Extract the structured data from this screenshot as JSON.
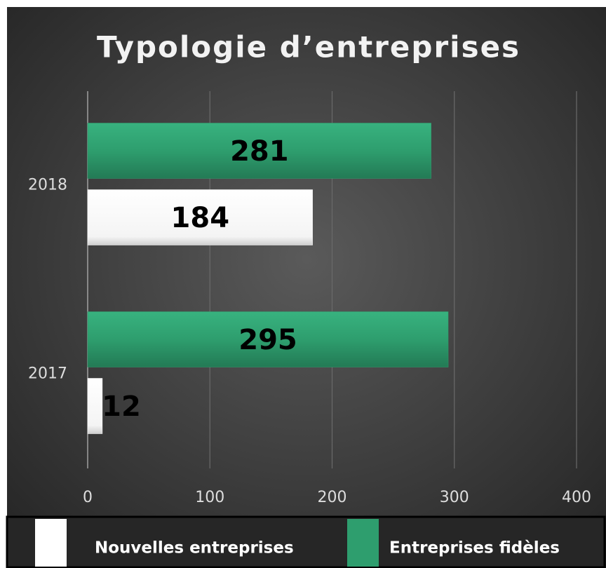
{
  "chart_data": {
    "type": "barh",
    "title": "Typologie d’entreprises",
    "categories": [
      "2017",
      "2018"
    ],
    "series": [
      {
        "name": "Nouvelles entreprises",
        "color": "#ffffff",
        "values": [
          12,
          184
        ]
      },
      {
        "name": "Entreprises fidèles",
        "color": "#2e9e6e",
        "values": [
          295,
          281
        ]
      }
    ],
    "xlim": [
      0,
      400
    ],
    "xticks": [
      0,
      100,
      200,
      300,
      400
    ],
    "grid": true
  }
}
